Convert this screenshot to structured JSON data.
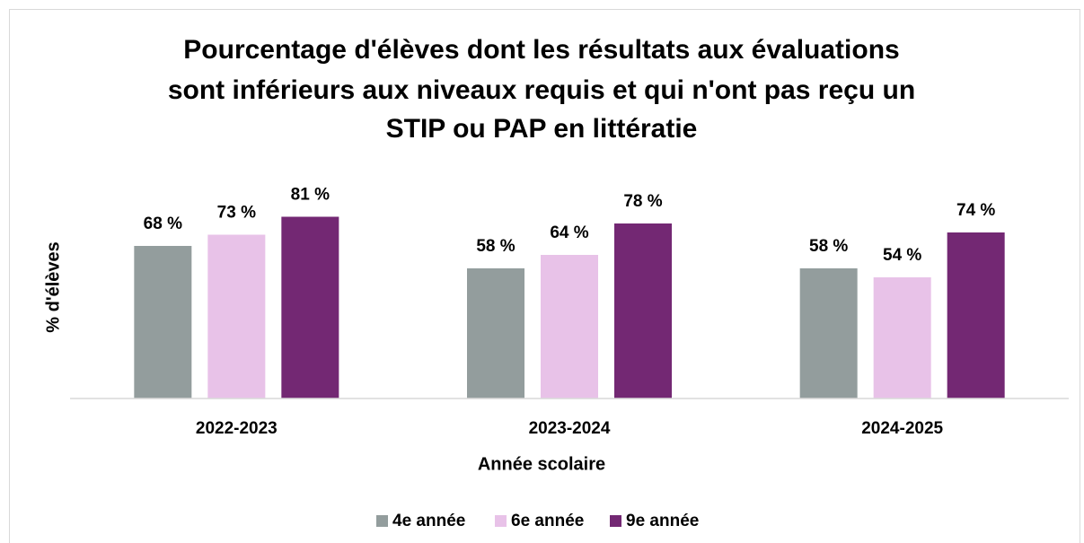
{
  "chart_data": {
    "type": "bar",
    "title": [
      "Pourcentage d'élèves dont les résultats aux évaluations",
      "sont inférieurs aux niveaux requis et qui n'ont pas reçu un",
      "STIP ou PAP en littératie"
    ],
    "xlabel": "Année scolaire",
    "ylabel": "% d'élèves",
    "categories": [
      "2022-2023",
      "2023-2024",
      "2024-2025"
    ],
    "series": [
      {
        "name": "4e année",
        "color": "#939d9d",
        "values": [
          68,
          58,
          58
        ],
        "value_labels": [
          "68 %",
          "58 %",
          "58 %"
        ]
      },
      {
        "name": "6e année",
        "color": "#e8c2e8",
        "values": [
          73,
          64,
          54
        ],
        "value_labels": [
          "73 %",
          "64 %",
          "54 %"
        ]
      },
      {
        "name": "9e année",
        "color": "#732873",
        "values": [
          81,
          78,
          74
        ],
        "value_labels": [
          "81 %",
          "78 %",
          "74 %"
        ]
      }
    ],
    "ylim": [
      0,
      100
    ],
    "legend": "bottom"
  }
}
